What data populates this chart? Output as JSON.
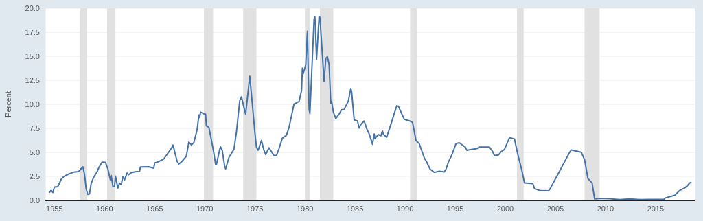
{
  "chart_data": {
    "type": "line",
    "ylabel": "Percent",
    "x": [
      "1954-07",
      "1954-09",
      "1954-11",
      "1955-01",
      "1955-05",
      "1955-09",
      "1955-12",
      "1956-06",
      "1956-12",
      "1957-06",
      "1957-11",
      "1958-01",
      "1958-03",
      "1958-05",
      "1958-07",
      "1958-09",
      "1958-12",
      "1959-04",
      "1959-06",
      "1959-10",
      "1960-02",
      "1960-05",
      "1960-08",
      "1960-09",
      "1960-11",
      "1961-01",
      "1961-02",
      "1961-05",
      "1961-07",
      "1961-09",
      "1961-11",
      "1962-01",
      "1962-04",
      "1962-06",
      "1962-09",
      "1963-03",
      "1963-07",
      "1963-08",
      "1964-06",
      "1964-12",
      "1965-01",
      "1965-06",
      "1965-12",
      "1966-07",
      "1966-09",
      "1966-11",
      "1967-04",
      "1967-06",
      "1967-09",
      "1968-03",
      "1968-06",
      "1968-09",
      "1968-12",
      "1969-04",
      "1969-06",
      "1969-07",
      "1969-08",
      "1970-01",
      "1970-02",
      "1970-03",
      "1970-06",
      "1970-09",
      "1970-12",
      "1971-02",
      "1971-03",
      "1971-07",
      "1971-08",
      "1971-10",
      "1972-01",
      "1972-02",
      "1972-06",
      "1972-12",
      "1973-03",
      "1973-07",
      "1973-09",
      "1973-11",
      "1974-02",
      "1974-07",
      "1974-10",
      "1975-01",
      "1975-03",
      "1975-05",
      "1975-09",
      "1975-12",
      "1976-02",
      "1976-06",
      "1976-12",
      "1977-03",
      "1977-06",
      "1977-10",
      "1978-03",
      "1978-06",
      "1978-12",
      "1979-06",
      "1979-09",
      "1979-10",
      "1979-11",
      "1980-02",
      "1980-04",
      "1980-06",
      "1980-07",
      "1980-12",
      "1981-01",
      "1981-03",
      "1981-06",
      "1981-07",
      "1981-10",
      "1981-12",
      "1982-02",
      "1982-04",
      "1982-06",
      "1982-08",
      "1982-09",
      "1982-11",
      "1983-02",
      "1983-06",
      "1983-09",
      "1983-12",
      "1984-05",
      "1984-08",
      "1984-09",
      "1984-12",
      "1985-04",
      "1985-06",
      "1985-08",
      "1985-12",
      "1986-03",
      "1986-06",
      "1986-10",
      "1986-12",
      "1987-01",
      "1987-05",
      "1987-08",
      "1987-10",
      "1987-11",
      "1988-03",
      "1988-09",
      "1989-03",
      "1989-05",
      "1989-09",
      "1989-12",
      "1990-06",
      "1990-10",
      "1991-02",
      "1991-06",
      "1991-12",
      "1992-03",
      "1992-07",
      "1992-12",
      "1993-06",
      "1993-12",
      "1994-02",
      "1994-05",
      "1994-09",
      "1995-02",
      "1995-06",
      "1995-09",
      "1996-01",
      "1996-03",
      "1996-06",
      "1997-03",
      "1997-06",
      "1998-06",
      "1998-10",
      "1998-12",
      "1999-05",
      "1999-08",
      "1999-12",
      "2000-06",
      "2000-12",
      "2001-01",
      "2001-04",
      "2001-09",
      "2001-12",
      "2002-10",
      "2002-12",
      "2003-07",
      "2004-05",
      "2004-07",
      "2005-06",
      "2006-06",
      "2006-08",
      "2007-08",
      "2007-12",
      "2008-04",
      "2008-09",
      "2008-12",
      "2009-06",
      "2010-06",
      "2011-06",
      "2012-06",
      "2013-06",
      "2014-06",
      "2015-11",
      "2015-12",
      "2016-12",
      "2017-03",
      "2017-06",
      "2017-12",
      "2018-03",
      "2018-06",
      "2018-08"
    ],
    "series": [
      {
        "color": "#4572a7",
        "values": [
          0.8,
          1.07,
          0.83,
          1.39,
          1.43,
          2.18,
          2.48,
          2.75,
          2.94,
          3.0,
          3.5,
          2.72,
          1.2,
          0.63,
          0.68,
          1.76,
          2.42,
          2.96,
          3.39,
          3.98,
          3.97,
          3.27,
          2.14,
          2.6,
          1.45,
          1.45,
          2.54,
          1.29,
          1.79,
          1.64,
          2.5,
          2.15,
          2.85,
          2.68,
          2.9,
          3.0,
          3.02,
          3.49,
          3.5,
          3.36,
          3.9,
          4.04,
          4.32,
          5.17,
          5.4,
          5.76,
          4.05,
          3.79,
          3.99,
          4.6,
          6.07,
          5.78,
          6.02,
          7.41,
          8.9,
          8.61,
          9.19,
          8.98,
          8.98,
          7.76,
          7.6,
          6.29,
          4.9,
          3.72,
          3.71,
          5.31,
          5.57,
          5.2,
          3.5,
          3.29,
          4.46,
          5.33,
          7.09,
          10.4,
          10.78,
          10.03,
          8.97,
          12.92,
          10.06,
          7.13,
          5.54,
          5.22,
          6.24,
          5.2,
          4.77,
          5.48,
          4.65,
          4.69,
          5.39,
          6.47,
          6.79,
          7.6,
          10.03,
          10.29,
          11.43,
          13.77,
          13.18,
          14.13,
          17.61,
          9.47,
          9.03,
          18.9,
          19.08,
          14.7,
          19.1,
          19.04,
          15.08,
          12.37,
          14.78,
          14.94,
          14.15,
          10.12,
          10.31,
          9.2,
          8.51,
          8.98,
          9.45,
          9.47,
          10.32,
          11.64,
          11.3,
          8.38,
          8.27,
          7.53,
          7.9,
          8.27,
          7.48,
          6.92,
          5.85,
          6.91,
          6.43,
          6.85,
          6.73,
          7.22,
          6.87,
          6.58,
          8.19,
          9.85,
          9.81,
          9.01,
          8.45,
          8.29,
          8.11,
          6.25,
          5.9,
          4.43,
          3.98,
          3.25,
          2.92,
          3.04,
          2.96,
          3.25,
          4.01,
          4.73,
          5.92,
          6.0,
          5.8,
          5.56,
          5.22,
          5.27,
          5.39,
          5.56,
          5.56,
          5.07,
          4.68,
          4.74,
          5.07,
          5.3,
          6.53,
          6.4,
          5.98,
          4.8,
          3.07,
          1.82,
          1.75,
          1.24,
          1.01,
          1.0,
          1.26,
          3.04,
          4.99,
          5.25,
          5.02,
          4.24,
          2.28,
          1.81,
          0.16,
          0.21,
          0.18,
          0.09,
          0.16,
          0.09,
          0.1,
          0.12,
          0.24,
          0.54,
          0.79,
          1.04,
          1.3,
          1.51,
          1.82,
          1.91
        ]
      }
    ],
    "xlim": [
      "1954-02",
      "2018-12"
    ],
    "xticks": [
      "1955",
      "1960",
      "1965",
      "1970",
      "1975",
      "1980",
      "1985",
      "1990",
      "1995",
      "2000",
      "2005",
      "2010",
      "2015"
    ],
    "ylim": [
      0,
      20
    ],
    "yticks": [
      {
        "value": 0,
        "label": "0.0"
      },
      {
        "value": 2.5,
        "label": "2.5"
      },
      {
        "value": 5,
        "label": "5.0"
      },
      {
        "value": 7.5,
        "label": "7.5"
      },
      {
        "value": 10,
        "label": "10.0"
      },
      {
        "value": 12.5,
        "label": "12.5"
      },
      {
        "value": 15,
        "label": "15.0"
      },
      {
        "value": 17.5,
        "label": "17.5"
      },
      {
        "value": 20,
        "label": "20.0"
      }
    ],
    "grid": "y",
    "marker": "none",
    "line_style": "solid",
    "bands": [
      {
        "axis": "x",
        "from": "1957-08",
        "to": "1958-04",
        "color": "#e1e1e1"
      },
      {
        "axis": "x",
        "from": "1960-04",
        "to": "1961-02",
        "color": "#e1e1e1"
      },
      {
        "axis": "x",
        "from": "1969-12",
        "to": "1970-11",
        "color": "#e1e1e1"
      },
      {
        "axis": "x",
        "from": "1973-11",
        "to": "1975-03",
        "color": "#e1e1e1"
      },
      {
        "axis": "x",
        "from": "1980-01",
        "to": "1980-07",
        "color": "#e1e1e1"
      },
      {
        "axis": "x",
        "from": "1981-07",
        "to": "1982-11",
        "color": "#e1e1e1"
      },
      {
        "axis": "x",
        "from": "1990-07",
        "to": "1991-03",
        "color": "#e1e1e1"
      },
      {
        "axis": "x",
        "from": "2001-03",
        "to": "2001-11",
        "color": "#e1e1e1"
      },
      {
        "axis": "x",
        "from": "2007-12",
        "to": "2009-06",
        "color": "#e1e1e1"
      }
    ]
  }
}
